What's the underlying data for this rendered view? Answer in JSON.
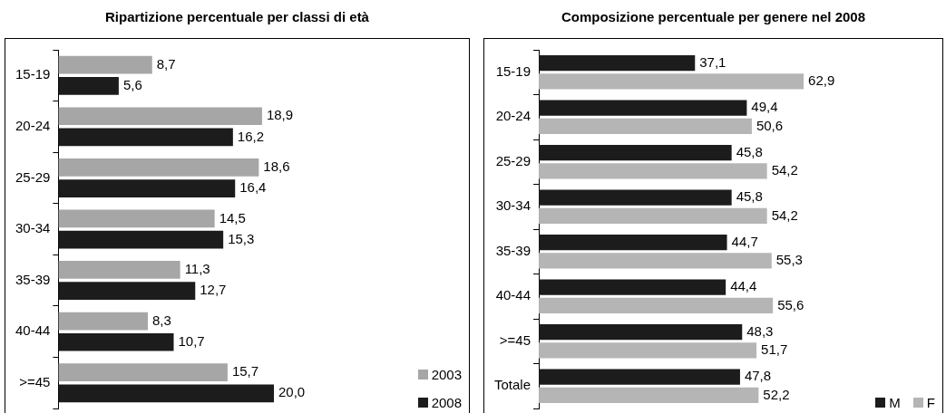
{
  "chart_data": [
    {
      "type": "bar",
      "orientation": "horizontal",
      "title": "Ripartizione percentuale per classi di età",
      "categories": [
        "15-19",
        "20-24",
        "25-29",
        "30-34",
        "35-39",
        "40-44",
        ">=45"
      ],
      "series": [
        {
          "name": "2003",
          "color": "#a6a6a6",
          "values": [
            8.7,
            18.9,
            18.6,
            14.5,
            11.3,
            8.3,
            15.7
          ],
          "value_labels": [
            "8,7",
            "18,9",
            "18,6",
            "14,5",
            "11,3",
            "8,3",
            "15,7"
          ]
        },
        {
          "name": "2008",
          "color": "#1c1c1c",
          "values": [
            5.6,
            16.2,
            16.4,
            15.3,
            12.7,
            10.7,
            20.0
          ],
          "value_labels": [
            "5,6",
            "16,2",
            "16,4",
            "15,3",
            "12,7",
            "10,7",
            "20,0"
          ]
        }
      ],
      "tick_labels": "y",
      "legend": "bottom right"
    },
    {
      "type": "bar",
      "orientation": "horizontal",
      "title": "Composizione percentuale per genere nel 2008",
      "categories": [
        "15-19",
        "20-24",
        "25-29",
        "30-34",
        "35-39",
        "40-44",
        ">=45",
        "Totale"
      ],
      "series": [
        {
          "name": "M",
          "color": "#1c1c1c",
          "values": [
            37.1,
            49.4,
            45.8,
            45.8,
            44.7,
            44.4,
            48.3,
            47.8
          ],
          "value_labels": [
            "37,1",
            "49,4",
            "45,8",
            "45,8",
            "44,7",
            "44,4",
            "48,3",
            "47,8"
          ]
        },
        {
          "name": "F",
          "color": "#b5b5b5",
          "values": [
            62.9,
            50.6,
            54.2,
            54.2,
            55.3,
            55.6,
            51.7,
            52.2
          ],
          "value_labels": [
            "62,9",
            "50,6",
            "54,2",
            "54,2",
            "55,3",
            "55,6",
            "51,7",
            "52,2"
          ]
        }
      ],
      "tick_labels": "y",
      "legend": "bottom right"
    }
  ]
}
